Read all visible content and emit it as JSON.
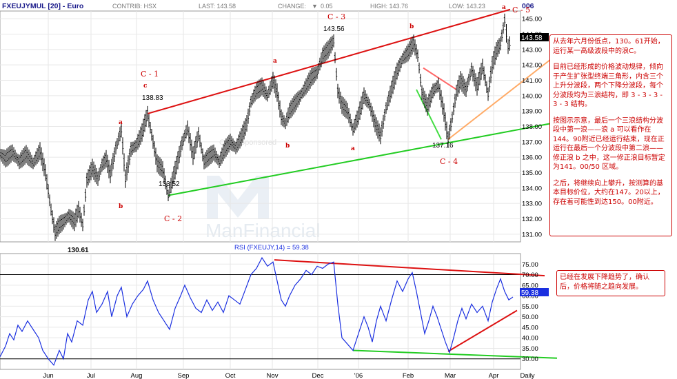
{
  "header": {
    "symbol": "FXEUJYMUL [20] - Euro",
    "contrib": "CONTRIB: HSX",
    "last": "LAST: 143.58",
    "change_label": "CHANGE:",
    "change_value": "0.05",
    "high": "HIGH: 143.76",
    "low": "LOW: 143.23",
    "year": "006"
  },
  "price_badge": "143.58",
  "rsi_badge": "59.38",
  "rsi_title": "RSI (FXEUJY,14) = 59.38",
  "watermark": {
    "sponsored": "Chart Sponsored",
    "brand": "ManFinancial"
  },
  "labels": {
    "c1": "C - 1",
    "c1_sub": "c",
    "c1_price": "138.83",
    "c2": "C - 2",
    "c2_price": "133.52",
    "c3": "C - 3",
    "c3_price": "143.56",
    "c4": "C - 4",
    "c4_price": "137.16",
    "c5": "C - 5",
    "low_price": "130.61",
    "a1": "a",
    "b1": "b",
    "a2": "a",
    "b2": "b",
    "a3": "a",
    "b3": "b",
    "a4": "a"
  },
  "notes": {
    "main": [
      "从去年六月份低点，130。61开始，运行某一高级波段中的浪C。",
      "目前已经形成的价格波动规律，倾向于产生扩张型终端三角形，内含三个上升分波段，两个下降分波段，每个分波段均为三浪结构，即 3 - 3 - 3 - 3 - 3 结构。",
      "按图示示意，最后一个三浪结构分波段中第一浪——浪 a 可以看作在144。90附近已经运行结束，现在正运行在最后一个分波段中第二浪——修正浪 b 之中，这一修正浪目标暂定为141。00/50 区域。",
      "之后，将继续向上攀升，按测算的基本目标价位，大约在147。20以上，存在着可能性到达150。00附近。"
    ],
    "rsi": "已经在发展下降趋势了，确认后，价格将随之趋向发展。"
  },
  "chart_data": [
    {
      "type": "line",
      "title": "FXEUJYMUL [20] - Euro",
      "xlabel": "",
      "ylabel": "",
      "ylim": [
        130.5,
        145.5
      ],
      "x_ticks": [
        "Jun",
        "Jul",
        "Aug",
        "Sep",
        "Oct",
        "Nov",
        "Dec",
        "'06",
        "Feb",
        "Mar",
        "Apr",
        "Daily"
      ],
      "y_ticks": [
        131.0,
        132.0,
        133.0,
        134.0,
        135.0,
        136.0,
        137.0,
        138.0,
        139.0,
        140.0,
        141.0,
        142.0,
        143.0,
        144.0,
        145.0
      ],
      "series": [
        {
          "values": [
            [
              0,
              136.2
            ],
            [
              8,
              135.9
            ],
            [
              18,
              136.3
            ],
            [
              28,
              135.7
            ],
            [
              38,
              136.2
            ],
            [
              48,
              135.6
            ],
            [
              58,
              136.4
            ],
            [
              66,
              135.0
            ],
            [
              74,
              132.6
            ],
            [
              80,
              131.1
            ],
            [
              86,
              131.6
            ],
            [
              92,
              131.8
            ],
            [
              100,
              132.2
            ],
            [
              108,
              131.8
            ],
            [
              114,
              132.6
            ],
            [
              120,
              131.6
            ],
            [
              126,
              134.5
            ],
            [
              134,
              135.3
            ],
            [
              142,
              134.6
            ],
            [
              148,
              135.5
            ],
            [
              154,
              135.9
            ],
            [
              160,
              134.9
            ],
            [
              168,
              136.6
            ],
            [
              176,
              137.8
            ],
            [
              182,
              134.6
            ],
            [
              190,
              136.5
            ],
            [
              198,
              136.8
            ],
            [
              206,
              137.6
            ],
            [
              214,
              138.83
            ],
            [
              222,
              137.0
            ],
            [
              228,
              135.6
            ],
            [
              236,
              135.2
            ],
            [
              244,
              133.52
            ],
            [
              250,
              134.5
            ],
            [
              258,
              135.8
            ],
            [
              264,
              136.9
            ],
            [
              272,
              137.9
            ],
            [
              280,
              136.1
            ],
            [
              288,
              137.5
            ],
            [
              296,
              135.7
            ],
            [
              302,
              136.0
            ],
            [
              310,
              136.3
            ],
            [
              318,
              135.7
            ],
            [
              326,
              136.5
            ],
            [
              334,
              137.0
            ],
            [
              342,
              136.6
            ],
            [
              350,
              137.3
            ],
            [
              358,
              138.2
            ],
            [
              364,
              139.6
            ],
            [
              372,
              140.3
            ],
            [
              380,
              140.6
            ],
            [
              388,
              140.0
            ],
            [
              396,
              141.0
            ],
            [
              402,
              140.2
            ],
            [
              408,
              138.6
            ],
            [
              414,
              138.2
            ],
            [
              420,
              139.0
            ],
            [
              428,
              139.5
            ],
            [
              436,
              140.0
            ],
            [
              444,
              140.6
            ],
            [
              452,
              141.2
            ],
            [
              460,
              141.5
            ],
            [
              468,
              142.6
            ],
            [
              476,
              143.0
            ],
            [
              484,
              143.56
            ],
            [
              490,
              140.3
            ],
            [
              496,
              139.4
            ],
            [
              504,
              139.0
            ],
            [
              512,
              137.8
            ],
            [
              520,
              138.7
            ],
            [
              528,
              140.0
            ],
            [
              536,
              139.4
            ],
            [
              544,
              138.2
            ],
            [
              552,
              137.4
            ],
            [
              560,
              139.2
            ],
            [
              568,
              140.4
            ],
            [
              576,
              141.6
            ],
            [
              584,
              142.4
            ],
            [
              592,
              142.8
            ],
            [
              600,
              143.4
            ],
            [
              606,
              142.6
            ],
            [
              612,
              140.2
            ],
            [
              620,
              139.3
            ],
            [
              628,
              140.3
            ],
            [
              636,
              140.7
            ],
            [
              644,
              138.9
            ],
            [
              650,
              137.16
            ],
            [
              656,
              138.6
            ],
            [
              662,
              140.2
            ],
            [
              668,
              141.0
            ],
            [
              676,
              140.4
            ],
            [
              684,
              141.7
            ],
            [
              692,
              140.6
            ],
            [
              700,
              141.9
            ],
            [
              708,
              140.1
            ],
            [
              714,
              142.0
            ],
            [
              720,
              142.9
            ],
            [
              726,
              143.4
            ],
            [
              732,
              144.9
            ],
            [
              737,
              143.2
            ],
            [
              742,
              143.58
            ]
          ]
        }
      ],
      "trendlines": [
        {
          "color": "#dd1111",
          "from": [
            214,
            138.83
          ],
          "to": [
            740,
            145.6
          ]
        },
        {
          "color": "#22cc22",
          "from": [
            244,
            133.52
          ],
          "to": [
            800,
            138.2
          ]
        },
        {
          "color": "#ff6666",
          "from": [
            614,
            141.8
          ],
          "to": [
            662,
            140.4
          ]
        },
        {
          "color": "#44dd44",
          "from": [
            604,
            140.4
          ],
          "to": [
            640,
            137.16
          ]
        },
        {
          "color": "#ffaa66",
          "from": [
            650,
            137.16
          ],
          "to": [
            800,
            142.4
          ]
        }
      ]
    },
    {
      "type": "line",
      "title": "RSI (FXEUJY,14) = 59.38",
      "xlabel": "",
      "ylabel": "",
      "ylim": [
        25,
        80
      ],
      "x_ticks": [
        "Jun",
        "Jul",
        "Aug",
        "Sep",
        "Oct",
        "Nov",
        "Dec",
        "'06",
        "Feb",
        "Mar",
        "Apr",
        "Daily"
      ],
      "y_ticks": [
        30.0,
        35.0,
        40.0,
        45.0,
        50.0,
        55.0,
        60.0,
        65.0,
        70.0,
        75.0
      ],
      "series": [
        {
          "values": [
            [
              0,
              31
            ],
            [
              8,
              36
            ],
            [
              14,
              42
            ],
            [
              20,
              39
            ],
            [
              26,
              46
            ],
            [
              32,
              43
            ],
            [
              40,
              48
            ],
            [
              48,
              44
            ],
            [
              56,
              40
            ],
            [
              62,
              34
            ],
            [
              70,
              30
            ],
            [
              78,
              27
            ],
            [
              86,
              34
            ],
            [
              92,
              30
            ],
            [
              98,
              42
            ],
            [
              104,
              38
            ],
            [
              112,
              48
            ],
            [
              120,
              46
            ],
            [
              128,
              58
            ],
            [
              134,
              62
            ],
            [
              140,
              52
            ],
            [
              148,
              56
            ],
            [
              156,
              62
            ],
            [
              162,
              50
            ],
            [
              170,
              60
            ],
            [
              176,
              64
            ],
            [
              184,
              50
            ],
            [
              192,
              56
            ],
            [
              200,
              60
            ],
            [
              208,
              63
            ],
            [
              214,
              67
            ],
            [
              222,
              58
            ],
            [
              230,
              52
            ],
            [
              238,
              48
            ],
            [
              246,
              44
            ],
            [
              254,
              54
            ],
            [
              262,
              60
            ],
            [
              268,
              65
            ],
            [
              276,
              59
            ],
            [
              284,
              54
            ],
            [
              292,
              52
            ],
            [
              300,
              58
            ],
            [
              308,
              53
            ],
            [
              316,
              57
            ],
            [
              324,
              52
            ],
            [
              332,
              60
            ],
            [
              340,
              58
            ],
            [
              348,
              56
            ],
            [
              356,
              63
            ],
            [
              364,
              70
            ],
            [
              372,
              73
            ],
            [
              380,
              78
            ],
            [
              388,
              74
            ],
            [
              396,
              76
            ],
            [
              402,
              67
            ],
            [
              408,
              58
            ],
            [
              414,
              55
            ],
            [
              420,
              60
            ],
            [
              428,
              65
            ],
            [
              436,
              68
            ],
            [
              444,
              72
            ],
            [
              452,
              70
            ],
            [
              460,
              74
            ],
            [
              468,
              73
            ],
            [
              476,
              75
            ],
            [
              484,
              76
            ],
            [
              490,
              56
            ],
            [
              496,
              40
            ],
            [
              504,
              37
            ],
            [
              512,
              34
            ],
            [
              520,
              42
            ],
            [
              528,
              50
            ],
            [
              534,
              45
            ],
            [
              540,
              38
            ],
            [
              546,
              48
            ],
            [
              552,
              55
            ],
            [
              560,
              48
            ],
            [
              568,
              58
            ],
            [
              576,
              67
            ],
            [
              584,
              62
            ],
            [
              592,
              68
            ],
            [
              598,
              71
            ],
            [
              604,
              62
            ],
            [
              610,
              52
            ],
            [
              616,
              42
            ],
            [
              622,
              48
            ],
            [
              628,
              55
            ],
            [
              634,
              50
            ],
            [
              640,
              44
            ],
            [
              646,
              38
            ],
            [
              652,
              33
            ],
            [
              658,
              40
            ],
            [
              664,
              48
            ],
            [
              670,
              54
            ],
            [
              676,
              49
            ],
            [
              684,
              56
            ],
            [
              692,
              52
            ],
            [
              700,
              55
            ],
            [
              708,
              48
            ],
            [
              714,
              57
            ],
            [
              720,
              63
            ],
            [
              726,
              68
            ],
            [
              732,
              62
            ],
            [
              738,
              58
            ],
            [
              744,
              59.38
            ]
          ]
        }
      ],
      "trendlines": [
        {
          "color": "#dd1111",
          "from": [
            398,
            77
          ],
          "to": [
            790,
            69.5
          ]
        },
        {
          "color": "#22cc22",
          "from": [
            512,
            34
          ],
          "to": [
            808,
            30.3
          ]
        },
        {
          "color": "#dd1111",
          "from": [
            650,
            33.5
          ],
          "to": [
            750,
            53
          ]
        }
      ]
    }
  ]
}
